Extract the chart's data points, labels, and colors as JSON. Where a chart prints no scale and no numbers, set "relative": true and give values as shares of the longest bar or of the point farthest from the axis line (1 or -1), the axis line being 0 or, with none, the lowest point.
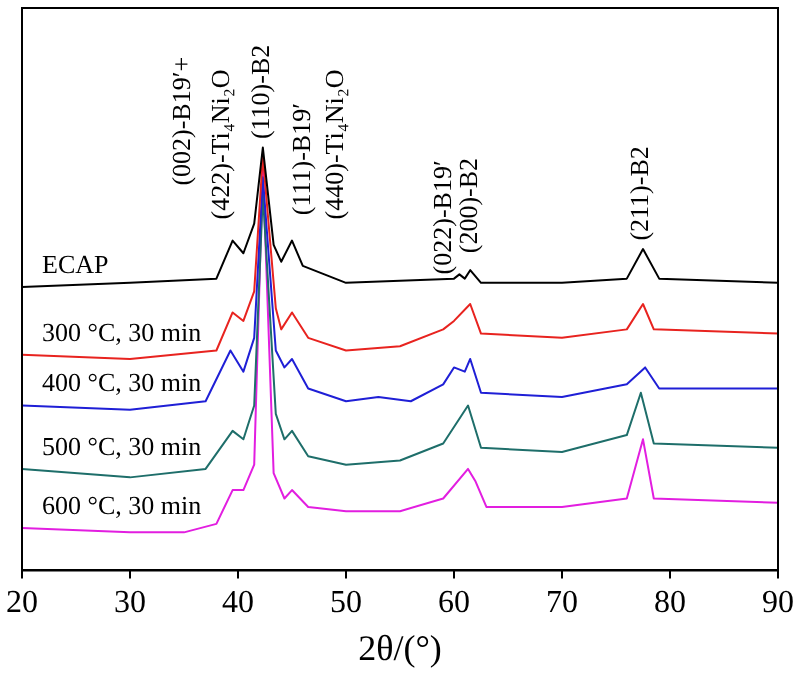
{
  "chart_data": {
    "type": "line",
    "relative": true,
    "xlabel": "2θ/(°)",
    "xlim": [
      20,
      90
    ],
    "xticks": [
      20,
      30,
      40,
      50,
      60,
      70,
      80,
      90
    ],
    "grid": false,
    "legend": false,
    "marker": "none",
    "line_style": "solid",
    "series": [
      {
        "name": "ECAP",
        "color": "#000000",
        "x": [
          20,
          30,
          38,
          39.5,
          40.5,
          41.5,
          42.3,
          43.3,
          44,
          45,
          46,
          50,
          60,
          60.5,
          61,
          61.5,
          62.5,
          70,
          76,
          77.5,
          79,
          90
        ],
        "values": [
          0.67,
          0.68,
          0.69,
          0.78,
          0.75,
          0.82,
          1,
          0.77,
          0.73,
          0.78,
          0.72,
          0.68,
          0.69,
          0.7,
          0.69,
          0.71,
          0.68,
          0.68,
          0.69,
          0.76,
          0.69,
          0.68
        ]
      },
      {
        "name": "300 °C, 30 min",
        "color": "#e8231f",
        "x": [
          20,
          30,
          38,
          39.5,
          40.5,
          41.5,
          42.3,
          43.5,
          44,
          45,
          46.5,
          50,
          55,
          59,
          60,
          61.5,
          62.5,
          70,
          76,
          77.5,
          78.5,
          90
        ],
        "values": [
          0.51,
          0.5,
          0.52,
          0.61,
          0.59,
          0.66,
          0.98,
          0.62,
          0.57,
          0.61,
          0.55,
          0.52,
          0.53,
          0.57,
          0.59,
          0.63,
          0.56,
          0.55,
          0.57,
          0.63,
          0.57,
          0.56
        ]
      },
      {
        "name": "400 °C, 30 min",
        "color": "#1f1fd6",
        "x": [
          20,
          30,
          37,
          39.3,
          40.5,
          41.5,
          42.3,
          43.5,
          44.3,
          45,
          46.5,
          50,
          53,
          56,
          59,
          60,
          61,
          61.5,
          62.5,
          70,
          76,
          77.7,
          79,
          90
        ],
        "values": [
          0.39,
          0.38,
          0.4,
          0.52,
          0.47,
          0.55,
          0.93,
          0.52,
          0.48,
          0.5,
          0.43,
          0.4,
          0.41,
          0.4,
          0.44,
          0.48,
          0.47,
          0.5,
          0.42,
          0.41,
          0.44,
          0.48,
          0.43,
          0.43
        ]
      },
      {
        "name": "500 °C, 30 min",
        "color": "#1e6e6a",
        "x": [
          20,
          30,
          37,
          39.5,
          40.5,
          41.5,
          42.3,
          43.5,
          44.3,
          45,
          46.5,
          50,
          55,
          59,
          61.3,
          62.5,
          70,
          76,
          77.3,
          78.5,
          90
        ],
        "values": [
          0.24,
          0.22,
          0.24,
          0.33,
          0.31,
          0.39,
          0.89,
          0.37,
          0.31,
          0.33,
          0.27,
          0.25,
          0.26,
          0.3,
          0.39,
          0.29,
          0.28,
          0.32,
          0.42,
          0.3,
          0.29
        ]
      },
      {
        "name": "600 °C, 30 min",
        "color": "#e21ee0",
        "x": [
          20,
          30,
          35,
          38,
          39.5,
          40.5,
          41.5,
          42.3,
          43.3,
          44.3,
          45,
          46.5,
          50,
          55,
          59,
          61.3,
          62,
          63,
          70,
          76,
          77.5,
          78.5,
          90
        ],
        "values": [
          0.1,
          0.09,
          0.09,
          0.11,
          0.19,
          0.19,
          0.25,
          0.95,
          0.23,
          0.17,
          0.19,
          0.15,
          0.14,
          0.14,
          0.17,
          0.24,
          0.21,
          0.15,
          0.15,
          0.17,
          0.31,
          0.17,
          0.16
        ]
      }
    ],
    "annotations": [
      "(002)-B19′+",
      "(422)-Ti₄Ni₂O",
      "(110)-B2",
      "(111)-B19′",
      "(440)-Ti₄Ni₂O",
      "(022)-B19′",
      "(200)-B2",
      "(211)-B2"
    ]
  }
}
